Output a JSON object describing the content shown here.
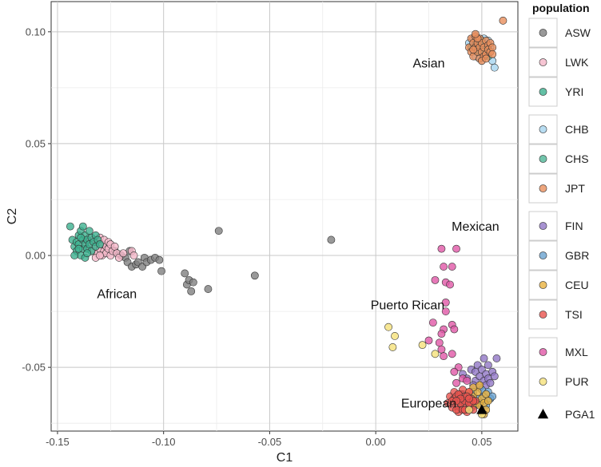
{
  "chart_data": {
    "type": "scatter",
    "xlabel": "C1",
    "ylabel": "C2",
    "xlim": [
      -0.153,
      0.067
    ],
    "ylim": [
      -0.0785,
      0.1135
    ],
    "x_ticks": [
      -0.15,
      -0.1,
      -0.05,
      0.0,
      0.05
    ],
    "x_tick_labels": [
      "-0.15",
      "-0.10",
      "-0.05",
      "0.00",
      "0.05"
    ],
    "y_ticks": [
      -0.05,
      0.0,
      0.05,
      0.1
    ],
    "y_tick_labels": [
      "-0.05",
      "0.00",
      "0.05",
      "0.10"
    ],
    "grid": true,
    "legend": {
      "title": "population",
      "placement": "right",
      "groups": [
        [
          "ASW",
          "LWK",
          "YRI"
        ],
        [
          "CHB",
          "CHS",
          "JPT"
        ],
        [
          "FIN",
          "GBR",
          "CEU",
          "TSI"
        ],
        [
          "MXL",
          "PUR"
        ]
      ],
      "marker_entry": "PGA1"
    },
    "annotations": [
      {
        "text": "Asian",
        "x": 0.025,
        "y": 0.084
      },
      {
        "text": "African",
        "x": -0.122,
        "y": -0.019
      },
      {
        "text": "Mexican",
        "x": 0.047,
        "y": 0.011
      },
      {
        "text": "Puerto Rican",
        "x": 0.015,
        "y": -0.024
      },
      {
        "text": "European",
        "x": 0.025,
        "y": -0.068
      }
    ],
    "series": [
      {
        "name": "ASW",
        "color": "#808080",
        "points": [
          [
            -0.127,
            0.004
          ],
          [
            -0.123,
            0.002
          ],
          [
            -0.12,
            0.0
          ],
          [
            -0.118,
            -0.001
          ],
          [
            -0.117,
            -0.003
          ],
          [
            -0.116,
            0.002
          ],
          [
            -0.115,
            -0.005
          ],
          [
            -0.113,
            -0.004
          ],
          [
            -0.112,
            -0.003
          ],
          [
            -0.11,
            -0.005
          ],
          [
            -0.109,
            -0.001
          ],
          [
            -0.108,
            -0.003
          ],
          [
            -0.106,
            -0.002
          ],
          [
            -0.104,
            -0.001
          ],
          [
            -0.102,
            -0.002
          ],
          [
            -0.101,
            -0.007
          ],
          [
            -0.09,
            -0.008
          ],
          [
            -0.089,
            -0.013
          ],
          [
            -0.088,
            -0.011
          ],
          [
            -0.087,
            -0.016
          ],
          [
            -0.086,
            -0.012
          ],
          [
            -0.079,
            -0.015
          ],
          [
            -0.074,
            0.011
          ],
          [
            -0.057,
            -0.009
          ],
          [
            -0.021,
            0.007
          ]
        ]
      },
      {
        "name": "LWK",
        "color": "#f4b6c8",
        "points": [
          [
            -0.137,
            0.006
          ],
          [
            -0.136,
            0.003
          ],
          [
            -0.135,
            0.008
          ],
          [
            -0.134,
            0.005
          ],
          [
            -0.133,
            0.002
          ],
          [
            -0.133,
            0.007
          ],
          [
            -0.132,
            0.004
          ],
          [
            -0.131,
            0.001
          ],
          [
            -0.131,
            0.006
          ],
          [
            -0.13,
            0.003
          ],
          [
            -0.13,
            0.008
          ],
          [
            -0.129,
            0.005
          ],
          [
            -0.129,
            0.0
          ],
          [
            -0.128,
            0.002
          ],
          [
            -0.128,
            0.007
          ],
          [
            -0.127,
            0.004
          ],
          [
            -0.127,
            0.001
          ],
          [
            -0.126,
            0.006
          ],
          [
            -0.126,
            0.003
          ],
          [
            -0.125,
            0.0
          ],
          [
            -0.125,
            0.005
          ],
          [
            -0.124,
            0.002
          ],
          [
            -0.123,
            0.004
          ],
          [
            -0.122,
            0.001
          ],
          [
            -0.121,
            -0.001
          ],
          [
            -0.119,
            0.001
          ],
          [
            -0.115,
            0.002
          ],
          [
            -0.114,
            0.0
          ],
          [
            -0.132,
            -0.001
          ],
          [
            -0.13,
            0.0
          ]
        ]
      },
      {
        "name": "YRI",
        "color": "#3cb08e",
        "points": [
          [
            -0.144,
            0.013
          ],
          [
            -0.143,
            0.007
          ],
          [
            -0.142,
            0.004
          ],
          [
            -0.141,
            0.006
          ],
          [
            -0.141,
            0.002
          ],
          [
            -0.14,
            0.009
          ],
          [
            -0.14,
            0.005
          ],
          [
            -0.139,
            0.0
          ],
          [
            -0.139,
            0.011
          ],
          [
            -0.138,
            0.007
          ],
          [
            -0.138,
            0.003
          ],
          [
            -0.138,
            0.013
          ],
          [
            -0.137,
            0.005
          ],
          [
            -0.137,
            0.009
          ],
          [
            -0.137,
            -0.001
          ],
          [
            -0.136,
            0.007
          ],
          [
            -0.136,
            0.003
          ],
          [
            -0.135,
            0.011
          ],
          [
            -0.135,
            0.005
          ],
          [
            -0.134,
            0.008
          ],
          [
            -0.134,
            0.002
          ],
          [
            -0.133,
            0.006
          ],
          [
            -0.132,
            0.009
          ],
          [
            -0.132,
            0.004
          ],
          [
            -0.131,
            0.007
          ],
          [
            -0.13,
            0.005
          ],
          [
            -0.14,
            0.003
          ],
          [
            -0.142,
            0.0
          ],
          [
            -0.136,
            0.001
          ],
          [
            -0.139,
            0.008
          ]
        ]
      },
      {
        "name": "CHB",
        "color": "#a6d4ef",
        "points": [
          [
            0.044,
            0.095
          ],
          [
            0.046,
            0.097
          ],
          [
            0.048,
            0.092
          ],
          [
            0.05,
            0.094
          ],
          [
            0.052,
            0.09
          ],
          [
            0.054,
            0.093
          ],
          [
            0.055,
            0.087
          ],
          [
            0.056,
            0.084
          ],
          [
            0.047,
            0.089
          ],
          [
            0.051,
            0.097
          ],
          [
            0.053,
            0.096
          ],
          [
            0.049,
            0.088
          ]
        ]
      },
      {
        "name": "CHS",
        "color": "#4fb596",
        "points": [
          [
            0.045,
            0.093
          ],
          [
            0.047,
            0.096
          ],
          [
            0.049,
            0.091
          ],
          [
            0.051,
            0.093
          ],
          [
            0.053,
            0.089
          ],
          [
            0.05,
            0.096
          ],
          [
            0.048,
            0.094
          ],
          [
            0.052,
            0.092
          ]
        ]
      },
      {
        "name": "JPT",
        "color": "#e98f5c",
        "points": [
          [
            0.044,
            0.093
          ],
          [
            0.045,
            0.097
          ],
          [
            0.045,
            0.091
          ],
          [
            0.046,
            0.095
          ],
          [
            0.046,
            0.089
          ],
          [
            0.047,
            0.093
          ],
          [
            0.047,
            0.098
          ],
          [
            0.048,
            0.091
          ],
          [
            0.048,
            0.095
          ],
          [
            0.049,
            0.088
          ],
          [
            0.049,
            0.093
          ],
          [
            0.049,
            0.097
          ],
          [
            0.05,
            0.091
          ],
          [
            0.05,
            0.095
          ],
          [
            0.051,
            0.089
          ],
          [
            0.051,
            0.093
          ],
          [
            0.052,
            0.096
          ],
          [
            0.052,
            0.09
          ],
          [
            0.053,
            0.094
          ],
          [
            0.053,
            0.092
          ],
          [
            0.054,
            0.091
          ],
          [
            0.054,
            0.095
          ],
          [
            0.055,
            0.093
          ],
          [
            0.055,
            0.09
          ],
          [
            0.046,
            0.092
          ],
          [
            0.048,
            0.097
          ],
          [
            0.05,
            0.087
          ],
          [
            0.052,
            0.088
          ],
          [
            0.06,
            0.105
          ],
          [
            0.047,
            0.099
          ]
        ]
      },
      {
        "name": "FIN",
        "color": "#9177c6",
        "points": [
          [
            0.041,
            -0.053
          ],
          [
            0.043,
            -0.055
          ],
          [
            0.045,
            -0.051
          ],
          [
            0.047,
            -0.056
          ],
          [
            0.047,
            -0.052
          ],
          [
            0.048,
            -0.049
          ],
          [
            0.049,
            -0.054
          ],
          [
            0.05,
            -0.051
          ],
          [
            0.051,
            -0.056
          ],
          [
            0.051,
            -0.046
          ],
          [
            0.052,
            -0.053
          ],
          [
            0.053,
            -0.049
          ],
          [
            0.053,
            -0.055
          ],
          [
            0.055,
            -0.052
          ],
          [
            0.056,
            -0.054
          ],
          [
            0.057,
            -0.046
          ],
          [
            0.046,
            -0.058
          ],
          [
            0.049,
            -0.059
          ],
          [
            0.052,
            -0.058
          ],
          [
            0.054,
            -0.057
          ]
        ]
      },
      {
        "name": "GBR",
        "color": "#6aa2cf",
        "points": [
          [
            0.041,
            -0.062
          ],
          [
            0.044,
            -0.066
          ],
          [
            0.046,
            -0.061
          ],
          [
            0.048,
            -0.064
          ],
          [
            0.05,
            -0.06
          ],
          [
            0.051,
            -0.063
          ],
          [
            0.052,
            -0.067
          ],
          [
            0.053,
            -0.061
          ],
          [
            0.054,
            -0.064
          ],
          [
            0.055,
            -0.063
          ],
          [
            0.047,
            -0.067
          ],
          [
            0.049,
            -0.066
          ]
        ]
      },
      {
        "name": "CEU",
        "color": "#e9b13f",
        "points": [
          [
            0.043,
            -0.064
          ],
          [
            0.045,
            -0.068
          ],
          [
            0.046,
            -0.063
          ],
          [
            0.047,
            -0.066
          ],
          [
            0.048,
            -0.061
          ],
          [
            0.049,
            -0.067
          ],
          [
            0.05,
            -0.064
          ],
          [
            0.05,
            -0.07
          ],
          [
            0.051,
            -0.066
          ],
          [
            0.052,
            -0.062
          ],
          [
            0.052,
            -0.069
          ],
          [
            0.053,
            -0.065
          ],
          [
            0.046,
            -0.059
          ],
          [
            0.049,
            -0.058
          ],
          [
            0.044,
            -0.061
          ],
          [
            0.051,
            -0.071
          ]
        ]
      },
      {
        "name": "TSI",
        "color": "#e8534e",
        "points": [
          [
            0.034,
            -0.066
          ],
          [
            0.035,
            -0.063
          ],
          [
            0.036,
            -0.068
          ],
          [
            0.037,
            -0.064
          ],
          [
            0.037,
            -0.061
          ],
          [
            0.038,
            -0.067
          ],
          [
            0.038,
            -0.063
          ],
          [
            0.039,
            -0.07
          ],
          [
            0.039,
            -0.065
          ],
          [
            0.04,
            -0.062
          ],
          [
            0.04,
            -0.068
          ],
          [
            0.041,
            -0.064
          ],
          [
            0.041,
            -0.06
          ],
          [
            0.042,
            -0.067
          ],
          [
            0.042,
            -0.063
          ],
          [
            0.043,
            -0.07
          ],
          [
            0.043,
            -0.065
          ],
          [
            0.044,
            -0.061
          ],
          [
            0.044,
            -0.068
          ],
          [
            0.045,
            -0.064
          ],
          [
            0.045,
            -0.066
          ],
          [
            0.046,
            -0.069
          ],
          [
            0.047,
            -0.065
          ],
          [
            0.036,
            -0.065
          ],
          [
            0.038,
            -0.069
          ],
          [
            0.04,
            -0.066
          ],
          [
            0.042,
            -0.065
          ],
          [
            0.044,
            -0.066
          ],
          [
            0.039,
            -0.062
          ],
          [
            0.041,
            -0.069
          ],
          [
            0.043,
            -0.063
          ],
          [
            0.046,
            -0.065
          ],
          [
            0.04,
            -0.064
          ],
          [
            0.042,
            -0.069
          ],
          [
            0.044,
            -0.064
          ],
          [
            0.038,
            -0.065
          ]
        ]
      },
      {
        "name": "MXL",
        "color": "#e057a6",
        "points": [
          [
            0.031,
            0.003
          ],
          [
            0.038,
            0.003
          ],
          [
            0.032,
            -0.005
          ],
          [
            0.036,
            -0.005
          ],
          [
            0.028,
            -0.011
          ],
          [
            0.033,
            -0.012
          ],
          [
            0.035,
            -0.013
          ],
          [
            0.033,
            -0.021
          ],
          [
            0.033,
            -0.025
          ],
          [
            0.027,
            -0.03
          ],
          [
            0.032,
            -0.033
          ],
          [
            0.031,
            -0.035
          ],
          [
            0.036,
            -0.031
          ],
          [
            0.037,
            -0.033
          ],
          [
            0.025,
            -0.038
          ],
          [
            0.03,
            -0.039
          ],
          [
            0.031,
            -0.042
          ],
          [
            0.032,
            -0.045
          ],
          [
            0.036,
            -0.044
          ],
          [
            0.039,
            -0.05
          ],
          [
            0.037,
            -0.052
          ],
          [
            0.041,
            -0.055
          ],
          [
            0.038,
            -0.057
          ],
          [
            0.043,
            -0.056
          ]
        ]
      },
      {
        "name": "PUR",
        "color": "#f5e17a",
        "points": [
          [
            0.006,
            -0.032
          ],
          [
            0.009,
            -0.036
          ],
          [
            0.008,
            -0.041
          ],
          [
            0.022,
            -0.04
          ],
          [
            0.028,
            -0.044
          ],
          [
            0.05,
            -0.071
          ],
          [
            0.044,
            -0.069
          ]
        ]
      },
      {
        "name": "PGA1",
        "color": "#000000",
        "marker": "triangle",
        "points": [
          [
            0.05,
            -0.069
          ]
        ]
      }
    ]
  }
}
